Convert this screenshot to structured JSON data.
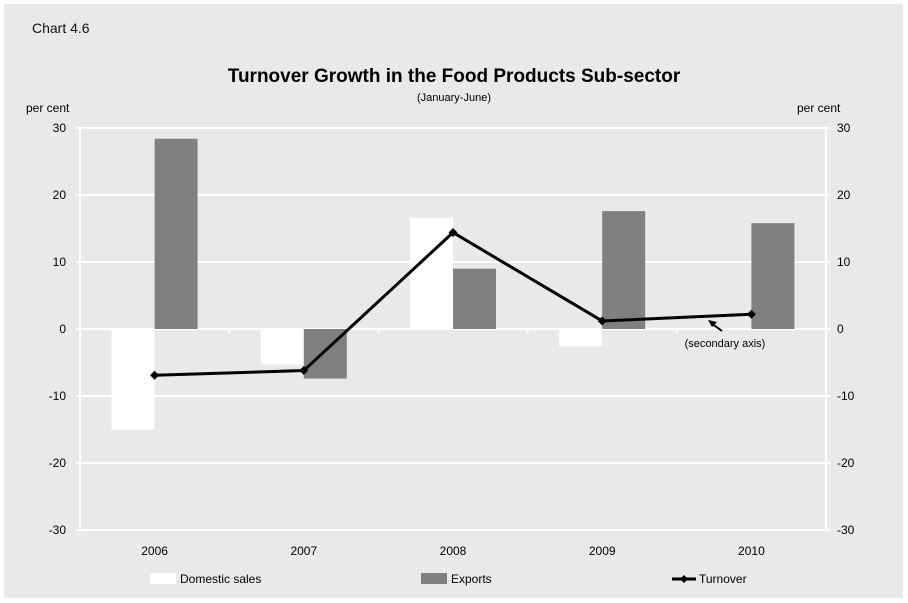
{
  "chart_label": "Chart 4.6",
  "chart_data": {
    "type": "bar",
    "title": "Turnover Growth in the Food Products Sub-sector",
    "subtitle": "(January-June)",
    "ylabel_left": "per cent",
    "ylabel_right": "per cent",
    "categories": [
      "2006",
      "2007",
      "2008",
      "2009",
      "2010"
    ],
    "ylim": [
      -30,
      30
    ],
    "y2lim": [
      -30,
      30
    ],
    "yticks": [
      30,
      20,
      10,
      0,
      -10,
      -20,
      -30
    ],
    "y2ticks": [
      30,
      20,
      10,
      0,
      -10,
      -20,
      -30
    ],
    "grid": true,
    "legend_position": "bottom",
    "series": [
      {
        "name": "Domestic sales",
        "type": "bar",
        "axis": "left",
        "color": "#ffffff",
        "values": [
          -15.0,
          -5.3,
          16.6,
          -2.6,
          0.0
        ]
      },
      {
        "name": "Exports",
        "type": "bar",
        "axis": "left",
        "color": "#808080",
        "values": [
          28.4,
          -7.4,
          9.0,
          17.6,
          15.8
        ]
      },
      {
        "name": "Turnover",
        "type": "line",
        "axis": "right",
        "color": "#000000",
        "marker": "diamond",
        "values": [
          -6.9,
          -6.2,
          14.4,
          1.2,
          2.2
        ]
      }
    ],
    "annotation": "(secondary axis)"
  }
}
